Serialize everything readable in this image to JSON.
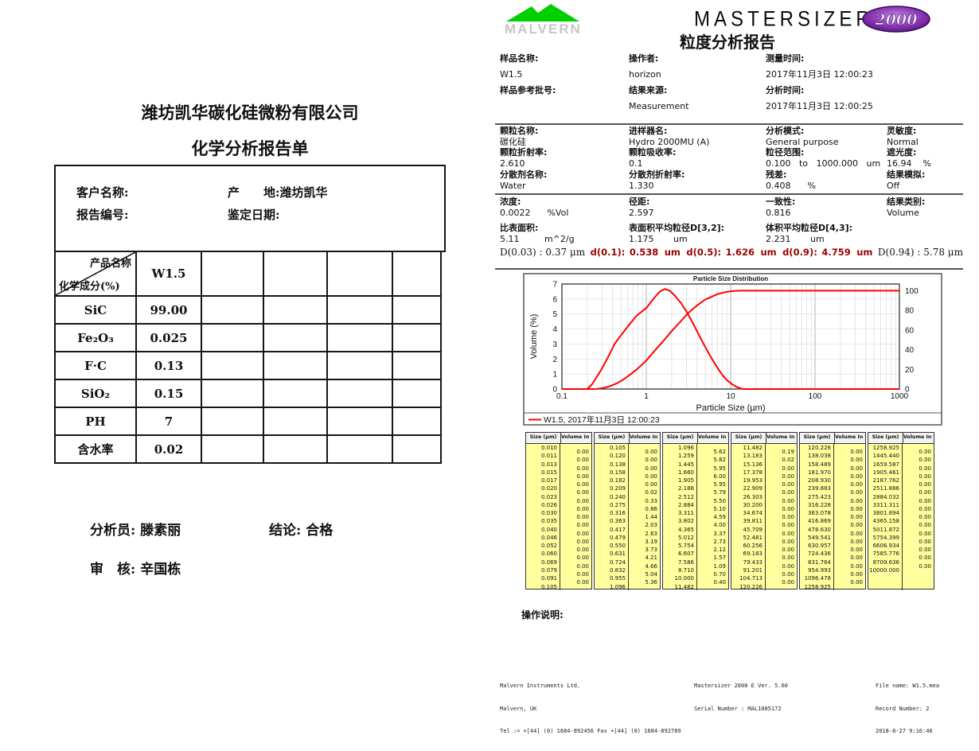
{
  "colors": {
    "curve_red": "#ff0000",
    "dark_red": "#9a0000",
    "table_yellow": "#ffff9e",
    "logo_green": "#00cf00",
    "logo_gray": "#c6c6c6",
    "oval_purple": "#7a1fa2"
  },
  "left_page": {
    "title": "潍坊凯华碳化硅微粉有限公司",
    "subtitle": "化学分析报告单",
    "info_box": {
      "customer_label": "客户名称:",
      "origin_label": "产　　地:",
      "origin_value": "潍坊凯华",
      "report_no_label": "报告编号:",
      "date_label": "鉴定日期:"
    },
    "table": {
      "corner_top": "产品名称",
      "corner_bottom": "化学成分(%)",
      "product_name": "W1.5",
      "rows": [
        {
          "component": "SiC",
          "value": "99.00"
        },
        {
          "component": "Fe₂O₃",
          "value": "0.025"
        },
        {
          "component": "F·C",
          "value": "0.13"
        },
        {
          "component": "SiO₂",
          "value": "0.15"
        },
        {
          "component": "PH",
          "value": "7"
        },
        {
          "component": "含水率",
          "value": "0.02"
        }
      ]
    },
    "signatures": {
      "analyst_label": "分析员:",
      "analyst": "滕素丽",
      "conclusion_label": "结论:",
      "conclusion": "合格",
      "reviewer_label": "审　核:",
      "reviewer": "辛国栋"
    }
  },
  "right_page": {
    "logo_text": "MALVERN",
    "brand": "MASTERSIZER",
    "brand_model": "2000",
    "report_title": "粒度分析报告",
    "sample_block": {
      "col1": {
        "l1": "样品名称:",
        "v1": "W1.5",
        "l2": "样品参考批号:",
        "v2": ""
      },
      "col2": {
        "l1": "操作者:",
        "v1": "horizon",
        "l2": "结果来源:",
        "v2": "Measurement"
      },
      "col3": {
        "l1": "测量时间:",
        "v1": "2017年11月3日 12:00:23",
        "l2": "分析时间:",
        "v2": "2017年11月3日 12:00:25"
      }
    },
    "particle_block": {
      "col1": {
        "l1": "颗粒名称:",
        "v1": "碳化硅",
        "l2": "颗粒折射率:",
        "v2": "2.610",
        "l3": "分散剂名称:",
        "v3": "Water"
      },
      "col2": {
        "l1": "进样器名:",
        "v1": "Hydro 2000MU (A)",
        "l2": "颗粒吸收率:",
        "v2": "0.1",
        "l3": "分散剂折射率:",
        "v3": "1.330"
      },
      "col3": {
        "l1": "分析模式:",
        "v1": "General purpose",
        "l2": "粒径范围:",
        "v2": "0.100   to   1000.000   um",
        "l3": "残差:",
        "v3": "0.408      %"
      },
      "col4": {
        "l1": "灵敏度:",
        "v1": "Normal",
        "l2": "遮光度:",
        "v2": "16.94    %",
        "l3": "结果模拟:",
        "v3": "Off"
      }
    },
    "result_block": {
      "col1": {
        "l1": "浓度:",
        "v1": "0.0022      %Vol",
        "l2": "比表面积:",
        "v2": "5.11         m^2/g"
      },
      "col2": {
        "l1": "径距:",
        "v1": "2.597",
        "l2": "表面积平均粒径D[3,2]:",
        "v2": "1.175       um"
      },
      "col3": {
        "l1": "一致性:",
        "v1": "0.816",
        "l2": "体积平均粒径D[4,3]:",
        "v2": "2.231       um"
      },
      "col4": {
        "l1": "结果类别:",
        "v1": "Volume"
      }
    },
    "d_line": {
      "left": "D(0.03) : 0.37 μm",
      "items": [
        {
          "label": "d(0.1):",
          "value": "0.538",
          "unit": "um"
        },
        {
          "label": "d(0.5):",
          "value": "1.626",
          "unit": "um"
        },
        {
          "label": "d(0.9):",
          "value": "4.759",
          "unit": "um"
        }
      ],
      "right": "D(0.94) : 5.78 μm"
    },
    "size_tables": {
      "headers": [
        "Size (µm)",
        "Volume In %"
      ],
      "columns": [
        {
          "sizes": [
            "0.010",
            "0.011",
            "0.013",
            "0.015",
            "0.017",
            "0.020",
            "0.023",
            "0.026",
            "0.030",
            "0.035",
            "0.040",
            "0.046",
            "0.052",
            "0.060",
            "0.069",
            "0.079",
            "0.091",
            "0.105"
          ],
          "volumes": [
            "0.00",
            "0.00",
            "0.00",
            "0.00",
            "0.00",
            "0.00",
            "0.00",
            "0.00",
            "0.00",
            "0.00",
            "0.00",
            "0.00",
            "0.00",
            "0.00",
            "0.00",
            "0.00",
            "0.00"
          ]
        },
        {
          "sizes": [
            "0.105",
            "0.120",
            "0.138",
            "0.158",
            "0.182",
            "0.209",
            "0.240",
            "0.275",
            "0.316",
            "0.363",
            "0.417",
            "0.479",
            "0.550",
            "0.631",
            "0.724",
            "0.832",
            "0.955",
            "1.096"
          ],
          "volumes": [
            "0.00",
            "0.00",
            "0.00",
            "0.00",
            "0.00",
            "0.02",
            "0.33",
            "0.86",
            "1.44",
            "2.03",
            "2.63",
            "3.19",
            "3.73",
            "4.21",
            "4.66",
            "5.04",
            "5.36"
          ]
        },
        {
          "sizes": [
            "1.096",
            "1.259",
            "1.445",
            "1.660",
            "1.905",
            "2.188",
            "2.512",
            "2.884",
            "3.311",
            "3.802",
            "4.365",
            "5.012",
            "5.754",
            "6.607",
            "7.586",
            "8.710",
            "10.000",
            "11.482"
          ],
          "volumes": [
            "5.62",
            "5.82",
            "5.95",
            "6.00",
            "5.95",
            "5.79",
            "5.50",
            "5.10",
            "4.59",
            "4.00",
            "3.37",
            "2.73",
            "2.12",
            "1.57",
            "1.09",
            "0.70",
            "0.40"
          ]
        },
        {
          "sizes": [
            "11.482",
            "13.183",
            "15.136",
            "17.378",
            "19.953",
            "22.909",
            "26.303",
            "30.200",
            "34.674",
            "39.811",
            "45.709",
            "52.481",
            "60.256",
            "69.183",
            "79.433",
            "91.201",
            "104.713",
            "120.226"
          ],
          "volumes": [
            "0.19",
            "0.02",
            "0.00",
            "0.00",
            "0.00",
            "0.00",
            "0.00",
            "0.00",
            "0.00",
            "0.00",
            "0.00",
            "0.00",
            "0.00",
            "0.00",
            "0.00",
            "0.00",
            "0.00"
          ]
        },
        {
          "sizes": [
            "120.226",
            "138.038",
            "158.489",
            "181.970",
            "208.930",
            "239.883",
            "275.423",
            "316.228",
            "363.078",
            "416.869",
            "478.630",
            "549.541",
            "630.957",
            "724.436",
            "831.764",
            "954.993",
            "1096.478",
            "1258.925"
          ],
          "volumes": [
            "0.00",
            "0.00",
            "0.00",
            "0.00",
            "0.00",
            "0.00",
            "0.00",
            "0.00",
            "0.00",
            "0.00",
            "0.00",
            "0.00",
            "0.00",
            "0.00",
            "0.00",
            "0.00",
            "0.00"
          ]
        },
        {
          "sizes": [
            "1258.925",
            "1445.440",
            "1659.587",
            "1905.461",
            "2187.762",
            "2511.886",
            "2884.032",
            "3311.311",
            "3801.894",
            "4365.158",
            "5011.872",
            "5754.399",
            "6606.934",
            "7585.776",
            "8709.636",
            "10000.000"
          ],
          "volumes": [
            "0.00",
            "0.00",
            "0.00",
            "0.00",
            "0.00",
            "0.00",
            "0.00",
            "0.00",
            "0.00",
            "0.00",
            "0.00",
            "0.00",
            "0.00",
            "0.00",
            "0.00"
          ]
        }
      ]
    },
    "operation_label": "操作说明:",
    "footer": {
      "company": [
        "Malvern Instruments Ltd.",
        "Malvern, UK",
        "Tel := +[44] (0) 1684-892456 Fax +[44] (0) 1684-892789"
      ],
      "instrument": [
        "Mastersizer 2000 E Ver. 5.60",
        "Serial Number : MAL1085172"
      ],
      "file": [
        "File name: W1.5.mea",
        "Record Number: 2",
        "2018-8-27 9:16:46"
      ]
    }
  },
  "chart_data": {
    "type": "line",
    "title": "Particle Size Distribution",
    "xlabel": "Particle Size (µm)",
    "ylabel": "Volume (%)",
    "x_scale": "log",
    "xlim": [
      0.1,
      1000
    ],
    "ylim_left": [
      0,
      7
    ],
    "ylim_right": [
      0,
      100
    ],
    "x_ticks": [
      0.1,
      1,
      10,
      100,
      1000
    ],
    "left_ticks": [
      0,
      1,
      2,
      3,
      4,
      5,
      6,
      7
    ],
    "right_ticks": [
      0,
      20,
      40,
      60,
      80,
      100
    ],
    "grid": true,
    "legend": "W1.5, 2017年11月3日 12:00:23",
    "legend_position": "bottom",
    "series": [
      {
        "name": "volume-frequency",
        "axis": "left",
        "color": "#ff0000",
        "points": [
          [
            0.1,
            0
          ],
          [
            0.2,
            0
          ],
          [
            0.23,
            0.35
          ],
          [
            0.29,
            1.25
          ],
          [
            0.35,
            2.1
          ],
          [
            0.42,
            3.0
          ],
          [
            0.52,
            3.7
          ],
          [
            0.63,
            4.3
          ],
          [
            0.77,
            4.9
          ],
          [
            1.0,
            5.4
          ],
          [
            1.25,
            6.1
          ],
          [
            1.45,
            6.5
          ],
          [
            1.65,
            6.67
          ],
          [
            1.9,
            6.55
          ],
          [
            2.2,
            6.2
          ],
          [
            2.6,
            5.7
          ],
          [
            3.0,
            5.15
          ],
          [
            3.6,
            4.35
          ],
          [
            4.3,
            3.5
          ],
          [
            5.0,
            2.8
          ],
          [
            6.0,
            2.0
          ],
          [
            7.0,
            1.4
          ],
          [
            8.0,
            0.92
          ],
          [
            9.0,
            0.6
          ],
          [
            10.5,
            0.3
          ],
          [
            12,
            0.12
          ],
          [
            13.5,
            0.02
          ],
          [
            14.5,
            0
          ],
          [
            1000,
            0
          ]
        ]
      },
      {
        "name": "cumulative-undersize",
        "axis": "right",
        "color": "#ff0000",
        "points": [
          [
            0.1,
            0
          ],
          [
            0.25,
            0
          ],
          [
            0.3,
            0.8
          ],
          [
            0.36,
            2.5
          ],
          [
            0.44,
            5.5
          ],
          [
            0.52,
            9
          ],
          [
            0.63,
            14
          ],
          [
            0.77,
            20
          ],
          [
            1.0,
            29
          ],
          [
            1.26,
            39
          ],
          [
            1.6,
            49
          ],
          [
            2.0,
            59
          ],
          [
            2.5,
            68
          ],
          [
            3.2,
            78
          ],
          [
            4.0,
            85
          ],
          [
            5.0,
            91
          ],
          [
            6.0,
            94
          ],
          [
            7.0,
            96.5
          ],
          [
            8.5,
            98.5
          ],
          [
            10,
            99.4
          ],
          [
            11.5,
            99.8
          ],
          [
            13.2,
            100
          ],
          [
            1000,
            100
          ]
        ]
      }
    ]
  }
}
